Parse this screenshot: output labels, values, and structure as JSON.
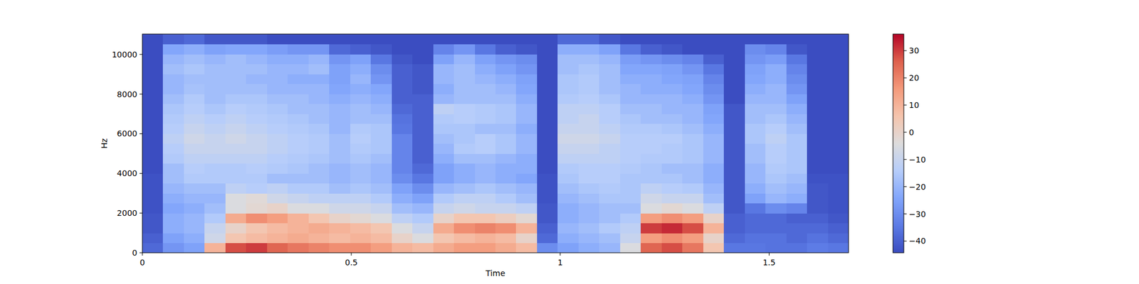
{
  "chart_data": {
    "type": "heatmap",
    "x_label": "Time",
    "y_label": "Hz",
    "xlim": [
      0,
      1.69
    ],
    "ylim": [
      0,
      11025
    ],
    "xticks": [
      0,
      0.5,
      1,
      1.5
    ],
    "yticks": [
      0,
      2000,
      4000,
      6000,
      8000,
      10000
    ],
    "zlim": [
      -44.3,
      36.1
    ],
    "zticks": [
      {
        "value": -40,
        "label": "−40"
      },
      {
        "value": -30,
        "label": "−30"
      },
      {
        "value": -20,
        "label": "−20"
      },
      {
        "value": -10,
        "label": "−10"
      },
      0,
      10,
      20,
      30
    ],
    "cells": [
      [
        -38,
        -40,
        -42,
        -42,
        -43,
        -43,
        -43,
        -43,
        -44,
        -44,
        -44,
        -44,
        -44,
        -44,
        -44,
        -44,
        -44,
        -44,
        -44,
        -44,
        -44,
        -44
      ],
      [
        -28,
        -25,
        -22,
        -22,
        -24,
        -22,
        -20,
        -18,
        -18,
        -15,
        -14,
        -12,
        -14,
        -15,
        -16,
        -18,
        -20,
        -20,
        -18,
        -20,
        -24,
        -40
      ],
      [
        -25,
        -22,
        -20,
        -20,
        -22,
        -20,
        -18,
        -15,
        -14,
        -12,
        -10,
        -8,
        -10,
        -12,
        -14,
        -15,
        -17,
        -18,
        -16,
        -18,
        -22,
        -38
      ],
      [
        10,
        -8,
        -10,
        -15,
        -18,
        -20,
        -18,
        -15,
        -15,
        -12,
        -10,
        -10,
        -12,
        -14,
        -16,
        -18,
        -18,
        -18,
        -18,
        -20,
        -25,
        -42
      ],
      [
        28,
        5,
        0,
        12,
        -5,
        -5,
        -12,
        -15,
        -15,
        -12,
        -10,
        -8,
        -10,
        -12,
        -14,
        -16,
        -18,
        -18,
        -18,
        -18,
        -24,
        -42
      ],
      [
        30,
        8,
        5,
        18,
        -2,
        -3,
        -14,
        -15,
        -14,
        -12,
        -10,
        -10,
        -12,
        -14,
        -15,
        -16,
        -18,
        -20,
        -18,
        -20,
        -24,
        -42
      ],
      [
        25,
        10,
        8,
        15,
        0,
        -8,
        -12,
        -18,
        -15,
        -14,
        -12,
        -12,
        -14,
        -15,
        -16,
        -18,
        -20,
        -20,
        -20,
        -22,
        -26,
        -44
      ],
      [
        22,
        12,
        10,
        10,
        -5,
        -10,
        -15,
        -18,
        -16,
        -15,
        -14,
        -14,
        -15,
        -16,
        -18,
        -18,
        -20,
        -22,
        -20,
        -22,
        -28,
        -44
      ],
      [
        20,
        10,
        12,
        5,
        -5,
        -12,
        -15,
        -18,
        -18,
        -16,
        -15,
        -15,
        -16,
        -18,
        -18,
        -20,
        -20,
        -22,
        -18,
        -20,
        -28,
        -44
      ],
      [
        18,
        8,
        10,
        0,
        -8,
        -12,
        -18,
        -20,
        -20,
        -18,
        -18,
        -18,
        -20,
        -20,
        -20,
        -22,
        -24,
        -25,
        -25,
        -28,
        -38,
        -44
      ],
      [
        18,
        10,
        8,
        -2,
        -8,
        -12,
        -16,
        -18,
        -18,
        -16,
        -15,
        -14,
        -15,
        -18,
        -18,
        -20,
        -22,
        -20,
        -22,
        -25,
        -40,
        -44
      ],
      [
        15,
        8,
        5,
        -5,
        -10,
        -15,
        -18,
        -20,
        -20,
        -18,
        -16,
        -16,
        -16,
        -18,
        -20,
        -22,
        -24,
        -28,
        -30,
        -35,
        -42,
        -44
      ],
      [
        10,
        0,
        -5,
        -12,
        -18,
        -22,
        -25,
        -30,
        -32,
        -32,
        -32,
        -32,
        -35,
        -36,
        -38,
        -40,
        -40,
        -40,
        -40,
        -42,
        -44,
        -44
      ],
      [
        8,
        -5,
        -10,
        -15,
        -20,
        -25,
        -30,
        -35,
        -38,
        -40,
        -40,
        -40,
        -40,
        -40,
        -40,
        -40,
        -42,
        -42,
        -42,
        -44,
        -44,
        -44
      ],
      [
        12,
        5,
        12,
        0,
        -10,
        -15,
        -20,
        -25,
        -25,
        -22,
        -20,
        -18,
        -16,
        -15,
        -12,
        -20,
        -22,
        -20,
        -20,
        -25,
        -32,
        -44
      ],
      [
        15,
        8,
        18,
        5,
        -8,
        -12,
        -18,
        -22,
        -22,
        -18,
        -15,
        -16,
        -16,
        -14,
        -14,
        -18,
        -18,
        -18,
        -18,
        -20,
        -28,
        -44
      ],
      [
        15,
        10,
        20,
        5,
        -10,
        -12,
        -16,
        -20,
        -20,
        -18,
        -14,
        -14,
        -18,
        -15,
        -15,
        -18,
        -18,
        -20,
        -22,
        -25,
        -35,
        -44
      ],
      [
        12,
        8,
        18,
        2,
        -10,
        -15,
        -18,
        -22,
        -22,
        -20,
        -16,
        -16,
        -18,
        -16,
        -16,
        -18,
        -20,
        -22,
        -25,
        -28,
        -40,
        -44
      ],
      [
        8,
        0,
        10,
        -2,
        -12,
        -18,
        -20,
        -24,
        -22,
        -22,
        -20,
        -20,
        -22,
        -20,
        -20,
        -22,
        -24,
        -25,
        -28,
        -30,
        -42,
        -44
      ],
      [
        -30,
        -38,
        -40,
        -42,
        -42,
        -43,
        -43,
        -43,
        -44,
        -44,
        -44,
        -44,
        -44,
        -44,
        -44,
        -44,
        -44,
        -44,
        -44,
        -44,
        -44,
        -44
      ],
      [
        -25,
        -22,
        -20,
        -22,
        -22,
        -20,
        -18,
        -16,
        -15,
        -12,
        -10,
        -8,
        -10,
        -12,
        -12,
        -15,
        -16,
        -16,
        -18,
        -18,
        -22,
        -38
      ],
      [
        -22,
        -20,
        -18,
        -20,
        -20,
        -18,
        -16,
        -14,
        -14,
        -12,
        -10,
        -8,
        -10,
        -10,
        -12,
        -14,
        -15,
        -15,
        -16,
        -18,
        -22,
        -38
      ],
      [
        -20,
        -18,
        -15,
        -18,
        -18,
        -16,
        -15,
        -14,
        -14,
        -12,
        -12,
        -10,
        -12,
        -14,
        -14,
        -16,
        -18,
        -18,
        -18,
        -20,
        -25,
        -42
      ],
      [
        -5,
        -10,
        -12,
        -15,
        -18,
        -16,
        -16,
        -16,
        -15,
        -14,
        -14,
        -14,
        -15,
        -16,
        -18,
        -20,
        -20,
        -22,
        -24,
        -26,
        -35,
        -44
      ],
      [
        25,
        15,
        30,
        15,
        -5,
        -8,
        -12,
        -16,
        -16,
        -15,
        -14,
        -14,
        -15,
        -18,
        -18,
        -20,
        -22,
        -22,
        -24,
        -28,
        -40,
        -44
      ],
      [
        28,
        18,
        32,
        18,
        -2,
        -10,
        -14,
        -16,
        -18,
        -15,
        -15,
        -14,
        -16,
        -18,
        -20,
        -20,
        -22,
        -24,
        -25,
        -30,
        -42,
        -44
      ],
      [
        22,
        15,
        28,
        15,
        -5,
        -10,
        -15,
        -18,
        -18,
        -16,
        -16,
        -16,
        -18,
        -20,
        -20,
        -22,
        -24,
        -25,
        -28,
        -32,
        -44,
        -44
      ],
      [
        5,
        0,
        10,
        0,
        -12,
        -18,
        -20,
        -22,
        -22,
        -20,
        -20,
        -20,
        -22,
        -24,
        -25,
        -28,
        -30,
        -32,
        -35,
        -40,
        -44,
        -44
      ],
      [
        -35,
        -38,
        -40,
        -40,
        -42,
        -42,
        -42,
        -42,
        -42,
        -42,
        -42,
        -42,
        -42,
        -42,
        -42,
        -44,
        -44,
        -44,
        -44,
        -44,
        -44,
        -44
      ],
      [
        -35,
        -36,
        -38,
        -38,
        -35,
        -25,
        -22,
        -20,
        -20,
        -18,
        -18,
        -16,
        -16,
        -18,
        -18,
        -20,
        -22,
        -24,
        -25,
        -28,
        -30,
        -44
      ],
      [
        -36,
        -36,
        -38,
        -38,
        -30,
        -20,
        -18,
        -16,
        -15,
        -14,
        -14,
        -12,
        -14,
        -16,
        -18,
        -20,
        -20,
        -22,
        -22,
        -26,
        -32,
        -44
      ],
      [
        -36,
        -38,
        -38,
        -40,
        -32,
        -22,
        -20,
        -18,
        -16,
        -16,
        -16,
        -16,
        -18,
        -20,
        -22,
        -25,
        -28,
        -30,
        -32,
        -35,
        -42,
        -44
      ],
      [
        -34,
        -36,
        -38,
        -40,
        -42,
        -42,
        -42,
        -43,
        -44,
        -44,
        -44,
        -44,
        -44,
        -44,
        -44,
        -44,
        -44,
        -44,
        -44,
        -44,
        -44,
        -44
      ],
      [
        -35,
        -38,
        -40,
        -42,
        -43,
        -43,
        -43,
        -43,
        -44,
        -44,
        -44,
        -44,
        -44,
        -44,
        -44,
        -44,
        -44,
        -44,
        -44,
        -44,
        -44,
        -44
      ]
    ]
  }
}
